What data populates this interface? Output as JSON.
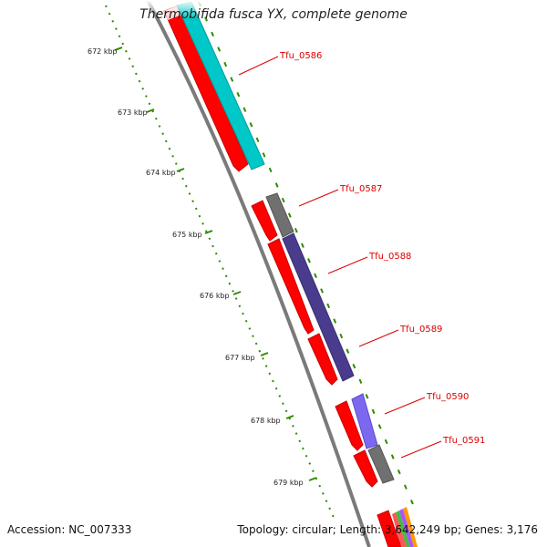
{
  "header": {
    "title": "Thermobifida fusca YX, complete genome"
  },
  "footer": {
    "accession": "Accession: NC_007333",
    "summary": "Topology: circular; Length: 3,642,249 bp; Genes: 3,176"
  },
  "ruler": {
    "labels": [
      "672 kbp",
      "673 kbp",
      "674 kbp",
      "675 kbp",
      "676 kbp",
      "677 kbp",
      "678 kbp",
      "679 kbp"
    ]
  },
  "genes": [
    {
      "name": "Tfu_0586",
      "color": "#00c8c8"
    },
    {
      "name": "Tfu_0587",
      "color": "#707070"
    },
    {
      "name": "Tfu_0588",
      "color": "#4a3c8c"
    },
    {
      "name": "Tfu_0589",
      "color": "#4a3c8c"
    },
    {
      "name": "Tfu_0590",
      "color": "#7b68ee"
    },
    {
      "name": "Tfu_0591",
      "color": "#707070"
    }
  ],
  "colors": {
    "cds": "#ff0000",
    "backbone": "#7a7a7a",
    "tick": "#2e8b00",
    "label": "#dd0000"
  }
}
